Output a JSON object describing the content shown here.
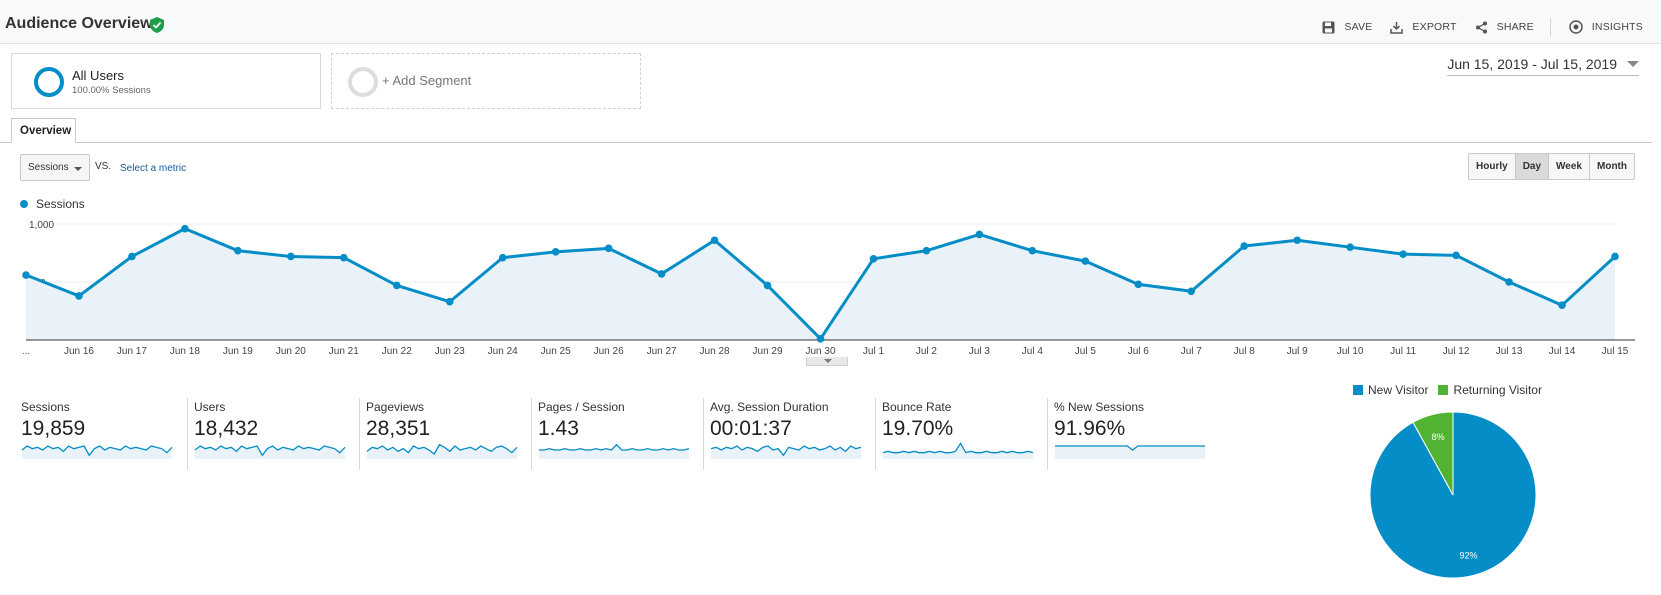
{
  "header": {
    "title": "Audience Overview",
    "tools": [
      {
        "label": "SAVE",
        "icon": "save-icon"
      },
      {
        "label": "EXPORT",
        "icon": "export-icon"
      },
      {
        "label": "SHARE",
        "icon": "share-icon"
      },
      {
        "label": "INSIGHTS",
        "icon": "insights-icon"
      }
    ]
  },
  "segments": {
    "all_users": {
      "name": "All Users",
      "sub": "100.00% Sessions"
    },
    "add": "+ Add Segment"
  },
  "date_range": "Jun 15, 2019 - Jul 15, 2019",
  "tabs": {
    "overview": "Overview"
  },
  "controls": {
    "metric": "Sessions",
    "vs": "VS.",
    "select_metric": "Select a metric",
    "periods": [
      "Hourly",
      "Day",
      "Week",
      "Month"
    ],
    "active_period": "Day"
  },
  "colors": {
    "accent": "#058dc7",
    "returning": "#50b432",
    "area": "#e8f2f8"
  },
  "chart_data": {
    "type": "line",
    "series": [
      {
        "name": "Sessions",
        "values": [
          560,
          380,
          720,
          960,
          770,
          720,
          710,
          470,
          330,
          710,
          760,
          790,
          570,
          860,
          470,
          10,
          700,
          770,
          910,
          770,
          680,
          480,
          420,
          810,
          860,
          800,
          740,
          730,
          500,
          300,
          720
        ]
      }
    ],
    "x": [
      "...",
      "Jun 16",
      "Jun 17",
      "Jun 18",
      "Jun 19",
      "Jun 20",
      "Jun 21",
      "Jun 22",
      "Jun 23",
      "Jun 24",
      "Jun 25",
      "Jun 26",
      "Jun 27",
      "Jun 28",
      "Jun 29",
      "Jun 30",
      "Jul 1",
      "Jul 2",
      "Jul 3",
      "Jul 4",
      "Jul 5",
      "Jul 6",
      "Jul 7",
      "Jul 8",
      "Jul 9",
      "Jul 10",
      "Jul 11",
      "Jul 12",
      "Jul 13",
      "Jul 14",
      "Jul 15"
    ],
    "y_ticks": [
      "500",
      "1,000"
    ],
    "ylim": [
      0,
      1000
    ],
    "grid": true
  },
  "scorecards": [
    {
      "label": "Sessions",
      "value": "19,859",
      "spark": [
        6,
        9,
        7,
        8,
        6,
        9,
        7,
        8,
        5,
        9,
        7,
        8,
        9,
        2,
        7,
        9,
        6,
        8,
        7,
        6,
        9,
        7,
        8,
        7,
        6,
        9,
        8,
        7,
        4,
        8
      ]
    },
    {
      "label": "Users",
      "value": "18,432",
      "spark": [
        6,
        9,
        7,
        8,
        6,
        9,
        7,
        8,
        5,
        9,
        7,
        8,
        9,
        2,
        7,
        9,
        6,
        8,
        7,
        6,
        9,
        7,
        8,
        7,
        6,
        9,
        8,
        7,
        4,
        8
      ]
    },
    {
      "label": "Pageviews",
      "value": "28,351",
      "spark": [
        5,
        8,
        7,
        9,
        6,
        8,
        5,
        7,
        4,
        9,
        7,
        8,
        6,
        3,
        10,
        8,
        5,
        9,
        6,
        7,
        8,
        6,
        9,
        7,
        5,
        8,
        9,
        7,
        4,
        8
      ]
    },
    {
      "label": "Pages / Session",
      "value": "1.43",
      "spark": [
        6,
        6,
        7,
        6,
        6,
        7,
        6,
        6,
        7,
        6,
        6,
        7,
        6,
        7,
        6,
        10,
        6,
        6,
        7,
        6,
        6,
        7,
        6,
        6,
        7,
        6,
        7,
        6,
        6,
        7
      ]
    },
    {
      "label": "Avg. Session Duration",
      "value": "00:01:37",
      "spark": [
        7,
        8,
        6,
        8,
        7,
        9,
        6,
        8,
        7,
        5,
        8,
        9,
        6,
        7,
        2,
        8,
        7,
        6,
        9,
        7,
        8,
        6,
        7,
        9,
        6,
        8,
        5,
        9,
        7,
        8
      ]
    },
    {
      "label": "Bounce Rate",
      "value": "19.70%",
      "spark": [
        4,
        5,
        4,
        4,
        5,
        4,
        5,
        4,
        4,
        5,
        4,
        5,
        4,
        4,
        5,
        11,
        4,
        5,
        4,
        4,
        5,
        4,
        4,
        5,
        4,
        5,
        4,
        4,
        5,
        4
      ]
    },
    {
      "label": "% New Sessions",
      "value": "91.96%",
      "spark": [
        9,
        9,
        9,
        9,
        9,
        9,
        9,
        9,
        9,
        9,
        9,
        9,
        9,
        9,
        9,
        6,
        9,
        9,
        9,
        9,
        9,
        9,
        9,
        9,
        9,
        9,
        9,
        9,
        9,
        9
      ]
    }
  ],
  "pie": {
    "legend": [
      {
        "name": "New Visitor",
        "color": "#058dc7"
      },
      {
        "name": "Returning Visitor",
        "color": "#50b432"
      }
    ],
    "values": [
      92,
      8
    ],
    "labels": [
      "92%",
      "8%"
    ]
  }
}
